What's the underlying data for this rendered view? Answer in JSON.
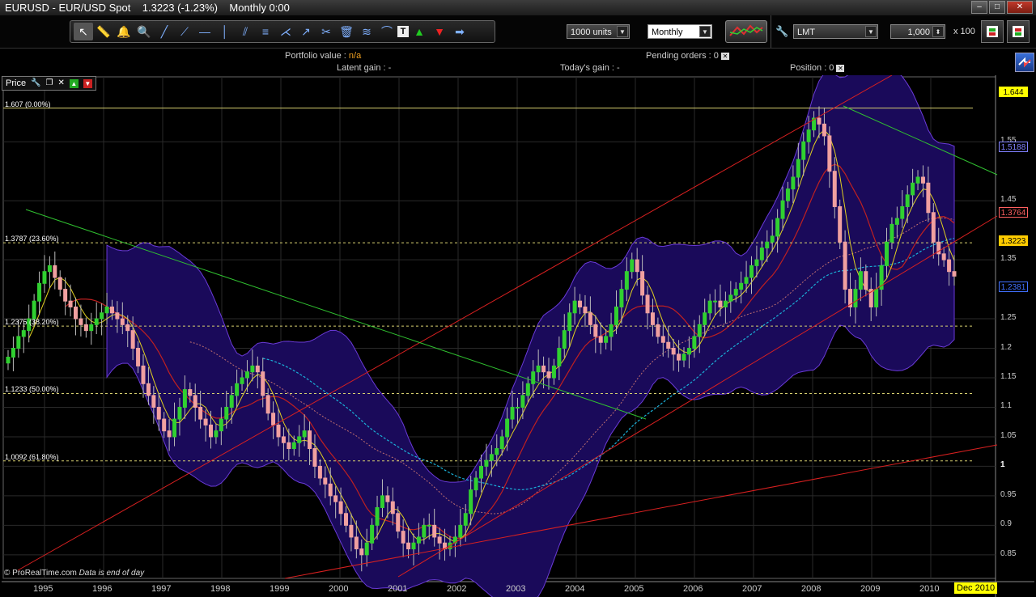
{
  "window": {
    "title": "EURUSD - EUR/USD Spot    1.3223 (-1.23%)    Monthly 0:00"
  },
  "toolbar": {
    "tools": [
      "pointer-tool",
      "ruler-tool",
      "alert-tool",
      "zoom-tool",
      "line-tool",
      "ray-tool",
      "horizontal-line-tool",
      "vertical-line-tool",
      "channel-tool",
      "fibonacci-tool",
      "pitchfork-tool",
      "arrow-tool",
      "settings-tool",
      "delete-tool",
      "fibonacci-fan-tool",
      "fibonacci-arc-tool",
      "text-tool",
      "buy-arrow-tool",
      "sell-arrow-tool",
      "more-tool"
    ],
    "quantity": "1000 units",
    "timeframe": "Monthly",
    "order_type": "LMT",
    "amount": "1,000",
    "multiplier": "x 100"
  },
  "info": {
    "portfolio_label": "Portfolio value :",
    "portfolio_value": "n/a",
    "pending_label": "Pending orders : 0",
    "latent_label": "Latent gain : -",
    "today_label": "Today's gain : -",
    "position_label": "Position : 0"
  },
  "chart": {
    "indicator_label": "Price",
    "footer_brand": "© ProRealTime.com",
    "footer_note": "Data is end of day"
  },
  "chart_data": {
    "type": "candlestick",
    "symbol": "EURUSD",
    "timeframe": "Monthly",
    "last": 1.3223,
    "change_pct": -1.23,
    "x_ticks": [
      "1995",
      "1996",
      "1997",
      "1998",
      "1999",
      "2000",
      "2001",
      "2002",
      "2003",
      "2004",
      "2005",
      "2006",
      "2007",
      "2008",
      "2009",
      "2010"
    ],
    "x_current_label": "Dec 2010",
    "y_ticks": [
      0.85,
      0.9,
      0.95,
      1,
      1.05,
      1.1,
      1.15,
      1.2,
      1.25,
      1.35,
      1.45,
      1.55
    ],
    "y_range": [
      0.81,
      1.66
    ],
    "price_tags": [
      {
        "value": "1.644",
        "color": "#ffff00"
      },
      {
        "value": "1.5188",
        "color": "#8080ff"
      },
      {
        "value": "1.3764",
        "color": "#ff6060"
      },
      {
        "value": "1.3223",
        "color": "#ffcc00"
      },
      {
        "value": "1.2381",
        "color": "#4070ff"
      }
    ],
    "fib_levels": [
      {
        "label": "1.607 (0.00%)",
        "price": 1.607
      },
      {
        "label": "1.3787 (23.60%)",
        "price": 1.3787
      },
      {
        "label": "1.2375 (38.20%)",
        "price": 1.2375
      },
      {
        "label": "1.1233 (50.00%)",
        "price": 1.1233
      },
      {
        "label": "1.0092 (61.80%)",
        "price": 1.0092
      }
    ],
    "closes": [
      1.185,
      1.2,
      1.22,
      1.23,
      1.25,
      1.28,
      1.31,
      1.33,
      1.34,
      1.32,
      1.3,
      1.28,
      1.27,
      1.25,
      1.24,
      1.23,
      1.24,
      1.25,
      1.26,
      1.27,
      1.26,
      1.25,
      1.24,
      1.23,
      1.2,
      1.17,
      1.14,
      1.12,
      1.1,
      1.08,
      1.06,
      1.05,
      1.08,
      1.1,
      1.13,
      1.12,
      1.1,
      1.08,
      1.07,
      1.05,
      1.06,
      1.08,
      1.1,
      1.12,
      1.14,
      1.15,
      1.16,
      1.17,
      1.16,
      1.12,
      1.09,
      1.07,
      1.05,
      1.04,
      1.03,
      1.04,
      1.05,
      1.06,
      1.03,
      1.0,
      0.98,
      0.97,
      0.95,
      0.94,
      0.92,
      0.9,
      0.88,
      0.86,
      0.85,
      0.87,
      0.9,
      0.93,
      0.95,
      0.94,
      0.92,
      0.89,
      0.87,
      0.86,
      0.87,
      0.88,
      0.9,
      0.9,
      0.88,
      0.87,
      0.86,
      0.87,
      0.88,
      0.9,
      0.92,
      0.96,
      0.98,
      1.0,
      1.01,
      1.02,
      1.03,
      1.05,
      1.08,
      1.1,
      1.1,
      1.12,
      1.14,
      1.16,
      1.17,
      1.16,
      1.15,
      1.17,
      1.2,
      1.23,
      1.26,
      1.28,
      1.27,
      1.26,
      1.24,
      1.22,
      1.21,
      1.22,
      1.24,
      1.27,
      1.3,
      1.33,
      1.35,
      1.33,
      1.29,
      1.26,
      1.24,
      1.22,
      1.21,
      1.2,
      1.19,
      1.18,
      1.19,
      1.2,
      1.22,
      1.24,
      1.26,
      1.28,
      1.28,
      1.27,
      1.28,
      1.29,
      1.3,
      1.31,
      1.32,
      1.34,
      1.35,
      1.37,
      1.38,
      1.39,
      1.42,
      1.45,
      1.47,
      1.49,
      1.52,
      1.55,
      1.57,
      1.59,
      1.58,
      1.56,
      1.5,
      1.44,
      1.38,
      1.3,
      1.27,
      1.3,
      1.33,
      1.3,
      1.27,
      1.3,
      1.34,
      1.38,
      1.41,
      1.42,
      1.44,
      1.46,
      1.48,
      1.49,
      1.48,
      1.43,
      1.38,
      1.36,
      1.35,
      1.33,
      1.3223
    ]
  }
}
